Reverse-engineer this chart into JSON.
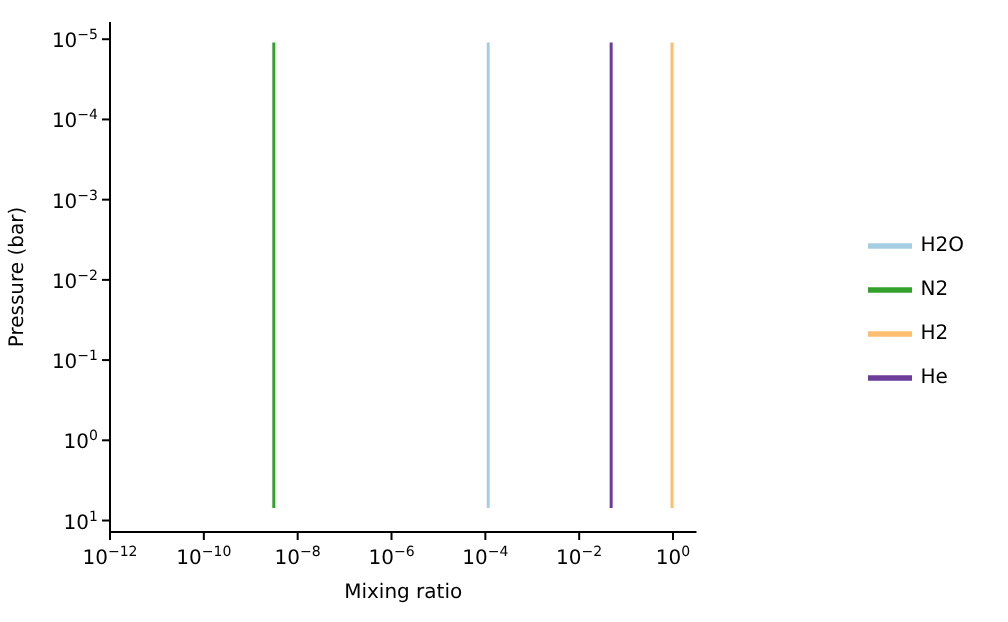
{
  "chart_data": {
    "type": "line",
    "xlabel": "Mixing ratio",
    "ylabel": "Pressure (bar)",
    "series": [
      {
        "name": "H2O",
        "color": "#a6cee3",
        "x": [
          0.000115,
          0.000115
        ],
        "values": [
          1.1e-05,
          7
        ]
      },
      {
        "name": "N2",
        "color": "#33a02c",
        "x": [
          3.1e-09,
          3.1e-09
        ],
        "values": [
          1.1e-05,
          7
        ]
      },
      {
        "name": "H2",
        "color": "#fdbf6f",
        "x": [
          0.95,
          0.95
        ],
        "values": [
          1.1e-05,
          7
        ]
      },
      {
        "name": "He",
        "color": "#6a3d9a",
        "x": [
          0.048,
          0.048
        ],
        "values": [
          1.1e-05,
          7
        ]
      }
    ],
    "log": "xy",
    "xlim": [
      1e-12,
      3.16
    ],
    "ylim": [
      13.9,
      6.1e-06
    ],
    "xticks": [
      {
        "value": 1e-12,
        "label": "10$^{−12}$"
      },
      {
        "value": 1e-10,
        "label": "10$^{−10}$"
      },
      {
        "value": 1e-08,
        "label": "10$^{−8}$"
      },
      {
        "value": 1e-06,
        "label": "10$^{−6}$"
      },
      {
        "value": 0.0001,
        "label": "10$^{−4}$"
      },
      {
        "value": 0.01,
        "label": "10$^{−2}$"
      },
      {
        "value": 1,
        "label": "10$^{0}$"
      }
    ],
    "yticks": [
      {
        "value": 1e-05,
        "label": "10$^{−5}$"
      },
      {
        "value": 0.0001,
        "label": "10$^{−4}$"
      },
      {
        "value": 0.001,
        "label": "10$^{−3}$"
      },
      {
        "value": 0.01,
        "label": "10$^{−2}$"
      },
      {
        "value": 0.1,
        "label": "10$^{−1}$"
      },
      {
        "value": 1,
        "label": "10$^{0}$"
      },
      {
        "value": 10,
        "label": "10$^{1}$"
      }
    ],
    "legend": "right",
    "grid": false,
    "marker": "none",
    "line_style": "solid"
  }
}
